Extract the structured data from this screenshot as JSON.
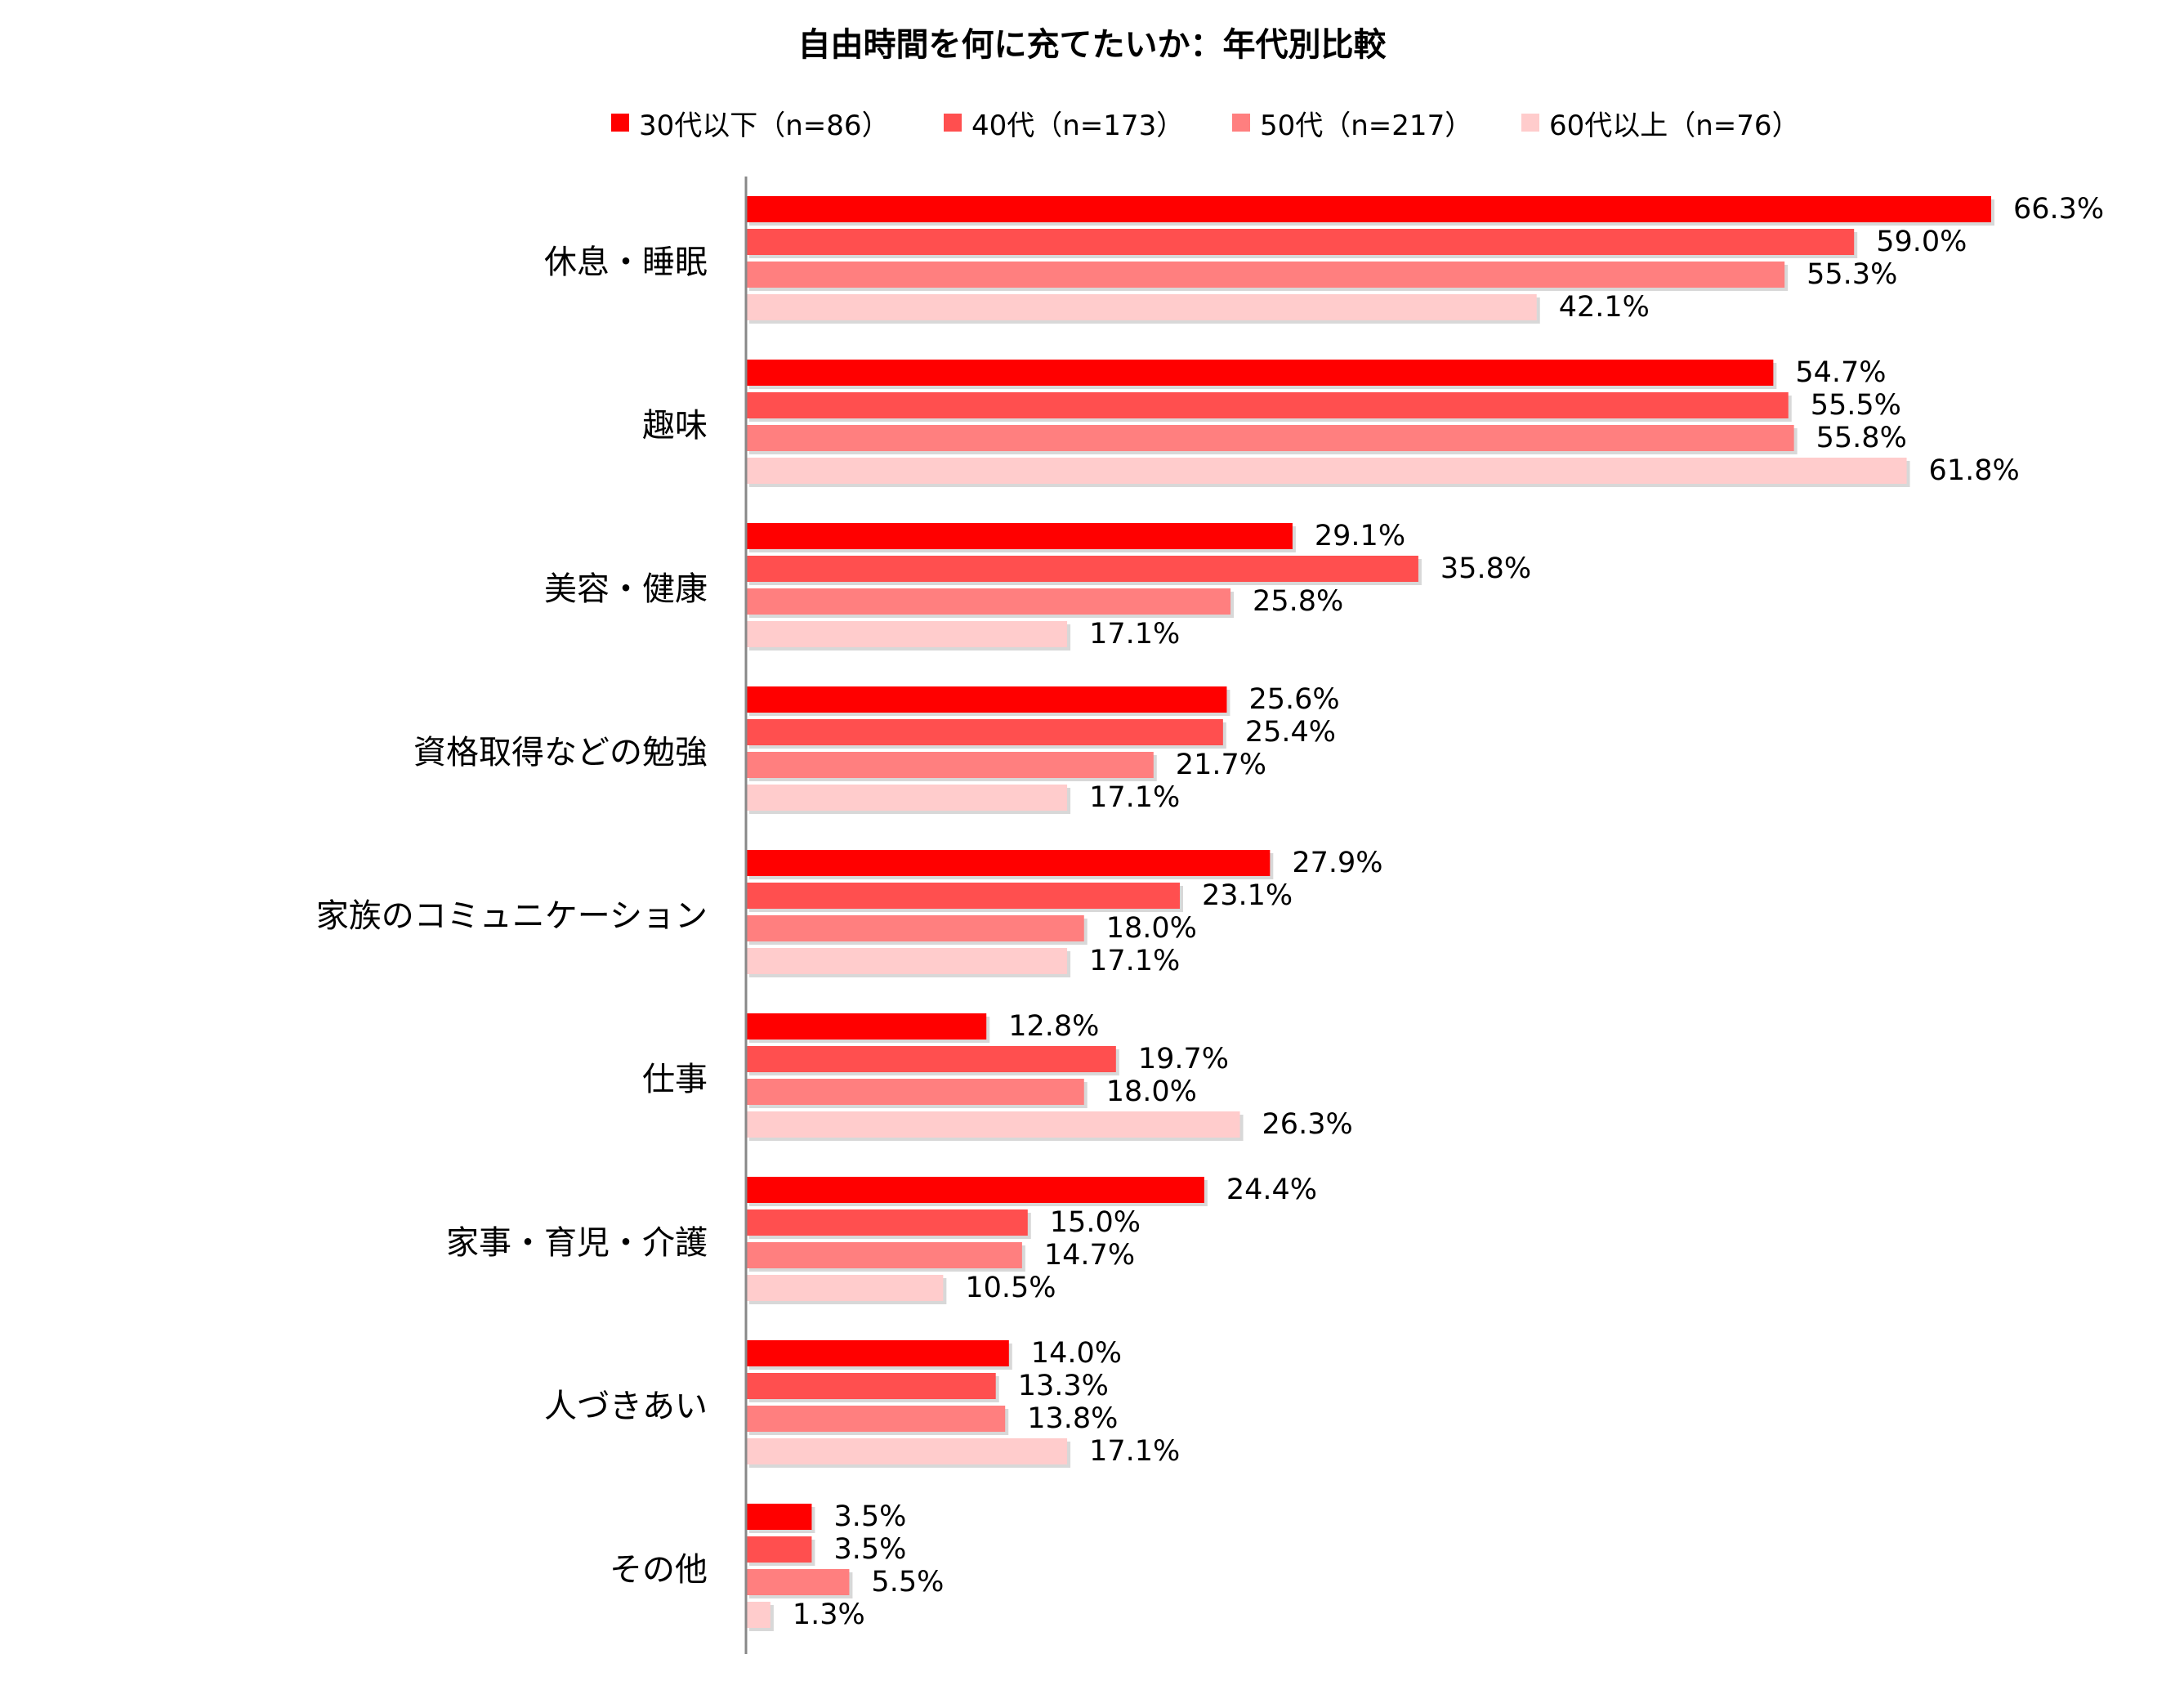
{
  "chart_data": {
    "type": "bar",
    "orientation": "horizontal",
    "title": "自由時間を何に充てたいか：年代別比較",
    "categories": [
      "休息・睡眠",
      "趣味",
      "美容・健康",
      "資格取得などの勉強",
      "家族のコミュニケーション",
      "仕事",
      "家事・育児・介護",
      "人づきあい",
      "その他"
    ],
    "series": [
      {
        "name": "30代以下（n=86）",
        "color": "#ff0000",
        "values": [
          66.3,
          54.7,
          29.1,
          25.6,
          27.9,
          12.8,
          24.4,
          14.0,
          3.5
        ]
      },
      {
        "name": "40代（n=173）",
        "color": "#ff4f4f",
        "values": [
          59.0,
          55.5,
          35.8,
          25.4,
          23.1,
          19.7,
          15.0,
          13.3,
          3.5
        ]
      },
      {
        "name": "50代（n=217）",
        "color": "#ff7f7f",
        "values": [
          55.3,
          55.8,
          25.8,
          21.7,
          18.0,
          18.0,
          14.7,
          13.8,
          5.5
        ]
      },
      {
        "name": "60代以上（n=76）",
        "color": "#ffcccc",
        "values": [
          42.1,
          61.8,
          17.1,
          17.1,
          17.1,
          26.3,
          10.5,
          17.1,
          1.3
        ]
      }
    ],
    "value_suffix": "%",
    "legend_position": "top",
    "grid": false
  }
}
